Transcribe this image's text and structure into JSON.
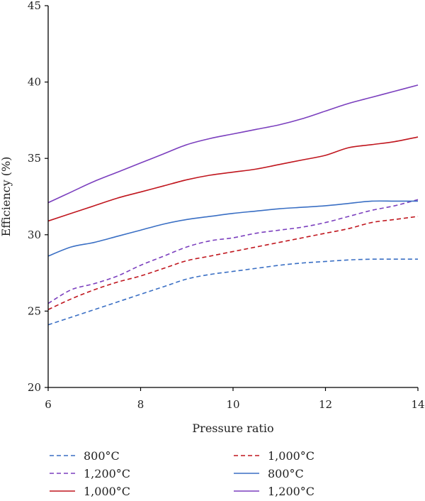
{
  "chart_data": {
    "type": "line",
    "title": "",
    "xlabel": "Pressure ratio",
    "ylabel": "Efficiency (%)",
    "xlim": [
      6,
      14
    ],
    "ylim": [
      20,
      45
    ],
    "xticks": [
      6,
      8,
      10,
      12,
      14
    ],
    "yticks": [
      20,
      25,
      30,
      35,
      40,
      45
    ],
    "grid": false,
    "legend_position": "bottom",
    "series": [
      {
        "name": "800°C",
        "style": "dashed",
        "color": "#3a6fc4",
        "x": [
          6,
          6.5,
          7,
          7.5,
          8,
          8.5,
          9,
          9.5,
          10,
          10.5,
          11,
          11.5,
          12,
          12.5,
          13,
          13.5,
          14
        ],
        "y": [
          24.1,
          24.6,
          25.1,
          25.6,
          26.1,
          26.6,
          27.1,
          27.4,
          27.6,
          27.8,
          28.0,
          28.15,
          28.25,
          28.35,
          28.4,
          28.4,
          28.4
        ]
      },
      {
        "name": "1,000°C",
        "style": "dashed",
        "color": "#c0161e",
        "x": [
          6,
          6.5,
          7,
          7.5,
          8,
          8.5,
          9,
          9.5,
          10,
          10.5,
          11,
          11.5,
          12,
          12.5,
          13,
          13.5,
          14
        ],
        "y": [
          25.1,
          25.8,
          26.4,
          26.9,
          27.3,
          27.8,
          28.3,
          28.6,
          28.9,
          29.2,
          29.5,
          29.8,
          30.1,
          30.4,
          30.8,
          31.0,
          31.2
        ]
      },
      {
        "name": "1,200°C",
        "style": "dashed",
        "color": "#7b3fbe",
        "x": [
          6,
          6.5,
          7,
          7.5,
          8,
          8.5,
          9,
          9.5,
          10,
          10.5,
          11,
          11.5,
          12,
          12.5,
          13,
          13.5,
          14
        ],
        "y": [
          25.5,
          26.4,
          26.8,
          27.3,
          28.0,
          28.6,
          29.2,
          29.6,
          29.8,
          30.1,
          30.3,
          30.5,
          30.8,
          31.2,
          31.6,
          31.9,
          32.3
        ]
      },
      {
        "name": "800°C",
        "style": "solid",
        "color": "#3a6fc4",
        "x": [
          6,
          6.5,
          7,
          7.5,
          8,
          8.5,
          9,
          9.5,
          10,
          10.5,
          11,
          11.5,
          12,
          12.5,
          13,
          13.5,
          14
        ],
        "y": [
          28.6,
          29.2,
          29.5,
          29.9,
          30.3,
          30.7,
          31.0,
          31.2,
          31.4,
          31.55,
          31.7,
          31.8,
          31.9,
          32.05,
          32.2,
          32.2,
          32.2
        ]
      },
      {
        "name": "1,000°C",
        "style": "solid",
        "color": "#c0161e",
        "x": [
          6,
          6.5,
          7,
          7.5,
          8,
          8.5,
          9,
          9.5,
          10,
          10.5,
          11,
          11.5,
          12,
          12.5,
          13,
          13.5,
          14
        ],
        "y": [
          30.9,
          31.4,
          31.9,
          32.4,
          32.8,
          33.2,
          33.6,
          33.9,
          34.1,
          34.3,
          34.6,
          34.9,
          35.2,
          35.7,
          35.9,
          36.1,
          36.4
        ]
      },
      {
        "name": "1,200°C",
        "style": "solid",
        "color": "#7b3fbe",
        "x": [
          6,
          6.5,
          7,
          7.5,
          8,
          8.5,
          9,
          9.5,
          10,
          10.5,
          11,
          11.5,
          12,
          12.5,
          13,
          13.5,
          14
        ],
        "y": [
          32.1,
          32.8,
          33.5,
          34.1,
          34.7,
          35.3,
          35.9,
          36.3,
          36.6,
          36.9,
          37.2,
          37.6,
          38.1,
          38.6,
          39.0,
          39.4,
          39.8
        ]
      }
    ],
    "legend_order": [
      0,
      1,
      2,
      3,
      4,
      5
    ]
  }
}
